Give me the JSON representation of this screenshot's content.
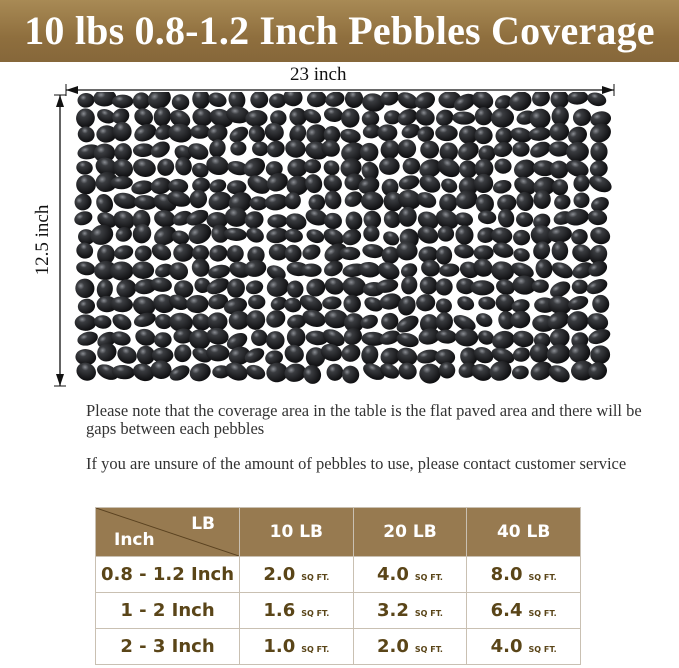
{
  "title": "10 lbs 0.8-1.2 Inch Pebbles Coverage",
  "dimensions": {
    "width": "23 inch",
    "height": "12.5 inch"
  },
  "notes": [
    "Please note that the coverage area in the table is the flat paved area and there will be gaps between each pebbles",
    "If you are unsure of the amount of pebbles to use, please contact customer service"
  ],
  "colors": {
    "brand": "#977a50",
    "cell_text": "#5a4518"
  },
  "table": {
    "corner_top": "LB",
    "corner_bottom": "Inch",
    "headers": [
      "10 LB",
      "20 LB",
      "40 LB"
    ],
    "unit": "SQ FT.",
    "rows": [
      {
        "size": "0.8 - 1.2 Inch",
        "values": [
          "2.0",
          "4.0",
          "8.0"
        ]
      },
      {
        "size": "1 - 2 Inch",
        "values": [
          "1.6",
          "3.2",
          "6.4"
        ]
      },
      {
        "size": "2 - 3 Inch",
        "values": [
          "1.0",
          "2.0",
          "4.0"
        ]
      }
    ]
  }
}
